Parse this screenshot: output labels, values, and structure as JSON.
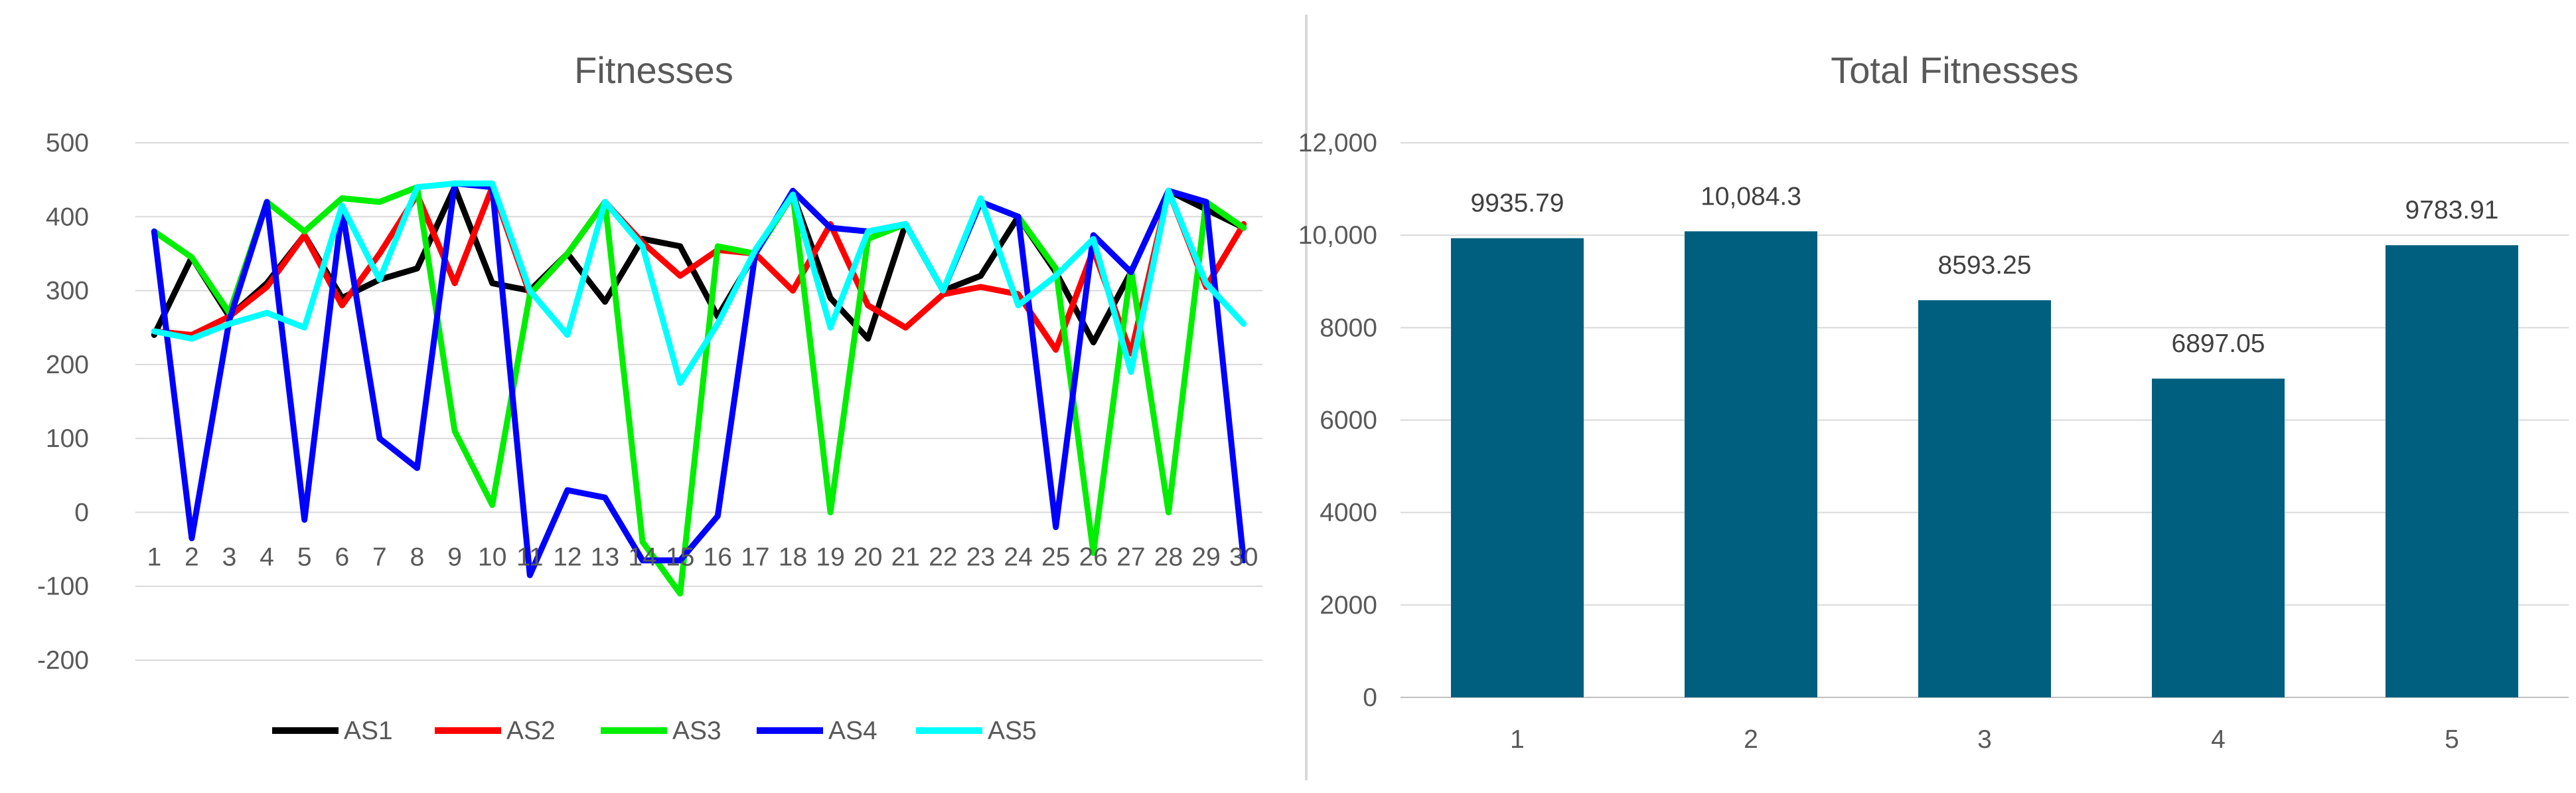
{
  "chart_data": [
    {
      "type": "line",
      "title": "Fitnesses",
      "x": [
        1,
        2,
        3,
        4,
        5,
        6,
        7,
        8,
        9,
        10,
        11,
        12,
        13,
        14,
        15,
        16,
        17,
        18,
        19,
        20,
        21,
        22,
        23,
        24,
        25,
        26,
        27,
        28,
        29,
        30
      ],
      "ylim": [
        -200,
        500
      ],
      "yticks": [
        -200,
        -100,
        0,
        100,
        200,
        300,
        400,
        500
      ],
      "grid": true,
      "legend_position": "bottom",
      "series": [
        {
          "name": "AS1",
          "color": "#000000",
          "values": [
            240,
            345,
            265,
            310,
            375,
            290,
            315,
            330,
            440,
            310,
            300,
            350,
            285,
            370,
            360,
            265,
            350,
            430,
            290,
            235,
            390,
            300,
            320,
            400,
            325,
            230,
            325,
            435,
            410,
            385
          ]
        },
        {
          "name": "AS2",
          "color": "#ff0000",
          "values": [
            245,
            240,
            265,
            305,
            375,
            280,
            350,
            430,
            310,
            440,
            295,
            350,
            420,
            365,
            320,
            355,
            350,
            300,
            390,
            280,
            250,
            295,
            305,
            295,
            220,
            355,
            215,
            435,
            305,
            390
          ]
        },
        {
          "name": "AS3",
          "color": "#00ee00",
          "values": [
            380,
            345,
            270,
            420,
            380,
            425,
            420,
            440,
            110,
            10,
            295,
            350,
            420,
            -40,
            -110,
            360,
            350,
            430,
            0,
            370,
            390,
            300,
            420,
            400,
            330,
            -55,
            330,
            0,
            420,
            385
          ]
        },
        {
          "name": "AS4",
          "color": "#0000ff",
          "values": [
            380,
            -35,
            260,
            420,
            -10,
            410,
            100,
            60,
            445,
            440,
            -85,
            30,
            20,
            -65,
            -65,
            -5,
            350,
            435,
            385,
            380,
            390,
            300,
            420,
            400,
            -20,
            375,
            325,
            435,
            420,
            -65
          ]
        },
        {
          "name": "AS5",
          "color": "#00ffff",
          "values": [
            245,
            235,
            255,
            270,
            250,
            415,
            315,
            440,
            445,
            445,
            300,
            240,
            420,
            360,
            175,
            255,
            355,
            430,
            250,
            380,
            390,
            300,
            425,
            280,
            320,
            370,
            190,
            435,
            310,
            255
          ]
        }
      ]
    },
    {
      "type": "bar",
      "title": "Total Fitnesses",
      "categories": [
        "1",
        "2",
        "3",
        "4",
        "5"
      ],
      "values": [
        9935.79,
        10084.3,
        8593.25,
        6897.05,
        9783.91
      ],
      "data_labels": [
        "9935.79",
        "10,084.3",
        "8593.25",
        "6897.05",
        "9783.91"
      ],
      "ylim": [
        0,
        12000
      ],
      "yticks": [
        0,
        2000,
        4000,
        6000,
        8000,
        10000,
        12000
      ],
      "ytick_labels": [
        "0",
        "2000",
        "4000",
        "6000",
        "8000",
        "10,000",
        "12,000"
      ],
      "bar_color": "#005f7f",
      "grid": true
    }
  ],
  "line_chart": {
    "title": "Fitnesses",
    "ytick_labels": [
      "500",
      "400",
      "300",
      "200",
      "100",
      "0",
      "-100",
      "-200"
    ],
    "xtick_labels": [
      "1",
      "2",
      "3",
      "4",
      "5",
      "6",
      "7",
      "8",
      "9",
      "10",
      "11",
      "12",
      "13",
      "14",
      "15",
      "16",
      "17",
      "18",
      "19",
      "20",
      "21",
      "22",
      "23",
      "24",
      "25",
      "26",
      "27",
      "28",
      "29",
      "30"
    ],
    "legend": [
      "AS1",
      "AS2",
      "AS3",
      "AS4",
      "AS5"
    ]
  },
  "bar_chart": {
    "title": "Total Fitnesses"
  }
}
